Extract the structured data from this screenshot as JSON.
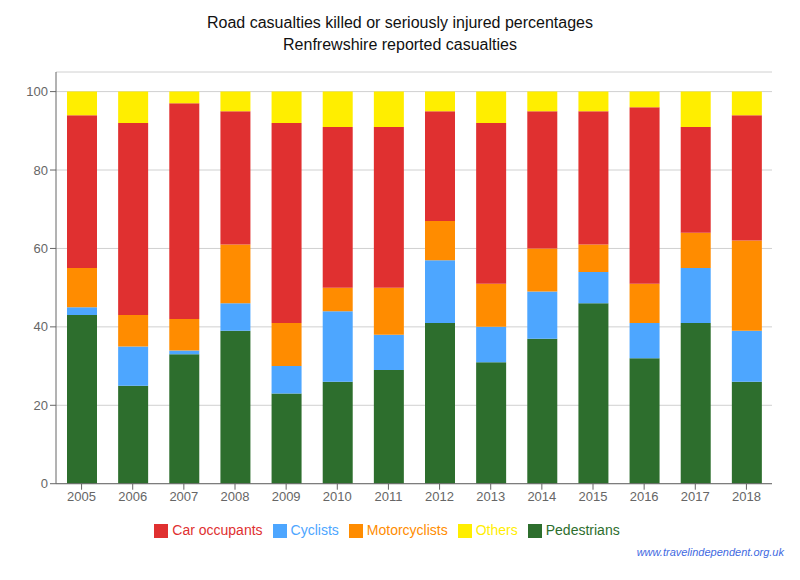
{
  "chart_data": {
    "type": "bar",
    "stacked": true,
    "title": "Road casualties killed or seriously injured percentages",
    "subtitle": "Renfrewshire reported casualties",
    "annotations": [
      "www.travelindependent.org.uk"
    ],
    "categories": [
      "2005",
      "2006",
      "2007",
      "2008",
      "2009",
      "2010",
      "2011",
      "2012",
      "2013",
      "2014",
      "2015",
      "2016",
      "2017",
      "2018"
    ],
    "series": [
      {
        "name": "Pedestrians",
        "color": "#2d6e2d",
        "values": [
          43,
          25,
          33,
          39,
          23,
          26,
          29,
          41,
          31,
          37,
          46,
          32,
          41,
          26
        ]
      },
      {
        "name": "Cyclists",
        "color": "#4da6ff",
        "values": [
          2,
          10,
          1,
          7,
          7,
          18,
          9,
          16,
          9,
          12,
          8,
          9,
          14,
          13
        ]
      },
      {
        "name": "Motorcyclists",
        "color": "#ff8c00",
        "values": [
          10,
          8,
          8,
          15,
          11,
          6,
          12,
          10,
          11,
          11,
          7,
          10,
          9,
          23
        ]
      },
      {
        "name": "Car occupants",
        "color": "#e03030",
        "values": [
          39,
          49,
          55,
          34,
          51,
          41,
          41,
          28,
          41,
          35,
          34,
          45,
          27,
          32
        ]
      },
      {
        "name": "Others",
        "color": "#ffee00",
        "values": [
          6,
          8,
          3,
          5,
          8,
          9,
          9,
          5,
          8,
          5,
          5,
          4,
          9,
          6
        ]
      }
    ],
    "ylim": [
      0,
      105
    ],
    "yticks": [
      0,
      20,
      40,
      60,
      80,
      100
    ],
    "grid": true,
    "legend": "bottom"
  }
}
